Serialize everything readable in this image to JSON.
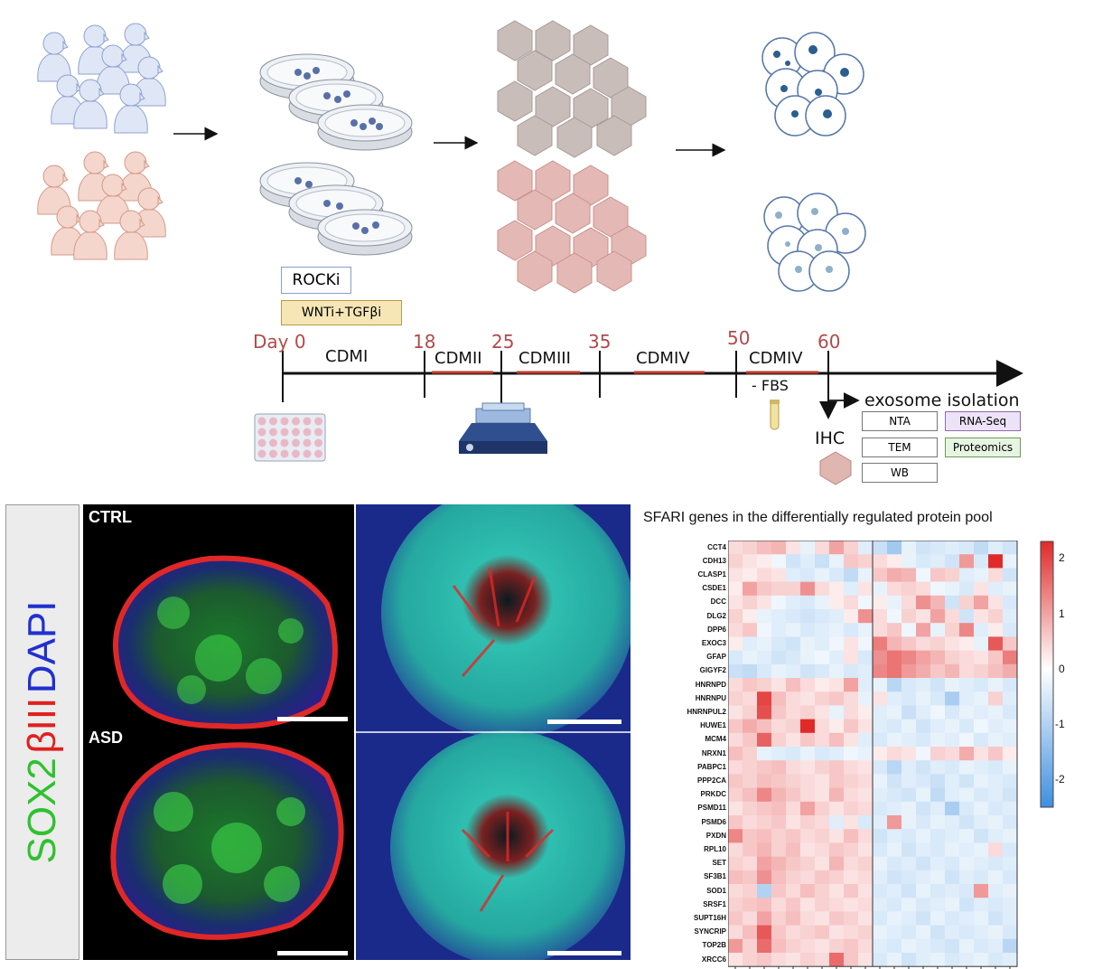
{
  "timeline": {
    "days": [
      "Day 0",
      "18",
      "25",
      "35",
      "50",
      "60"
    ],
    "stages": [
      "CDMI",
      "CDMII",
      "CDMIII",
      "CDMIV",
      "CDMIV"
    ],
    "fbs_label": "- FBS",
    "treatments": [
      "ROCKi",
      "WNTi+TGFβi"
    ],
    "exosome_label": "exosome isolation",
    "ihc_label": "IHC",
    "analyses": [
      "NTA",
      "RNA-Seq",
      "TEM",
      "Proteomics",
      "WB"
    ]
  },
  "microscopy": {
    "stain_sox2": "SOX2",
    "stain_biii": "βIII",
    "stain_dapi": "DAPI",
    "ctrl_label": "CTRL",
    "asd_label": "ASD"
  },
  "chart_data": {
    "type": "heatmap",
    "title": "SFARI genes in the differentially regulated protein pool",
    "genes": [
      "CCT4",
      "CDH13",
      "CLASP1",
      "CSDE1",
      "DCC",
      "DLG2",
      "DPP6",
      "EXOC3",
      "GFAP",
      "GIGYF2",
      "HNRNPD",
      "HNRNPU",
      "HNRNPUL2",
      "HUWE1",
      "MCM4",
      "NRXN1",
      "PABPC1",
      "PPP2CA",
      "PRKDC",
      "PSMD11",
      "PSMD6",
      "PXDN",
      "RPL10",
      "SET",
      "SF3B1",
      "SOD1",
      "SRSF1",
      "SUPT16H",
      "SYNCRIP",
      "TOP2B",
      "XRCC6"
    ],
    "colorbar_ticks": [
      2,
      1,
      0,
      -1,
      -2
    ],
    "color_range": [
      -2.5,
      2.3
    ],
    "colors": {
      "low": "#3d8fe0",
      "mid": "#ffffff",
      "high": "#e02a2a"
    },
    "values": [
      [
        0.4,
        0.5,
        0.7,
        0.8,
        0.3,
        -0.3,
        0.4,
        1.0,
        0.5,
        -0.4,
        -0.7,
        -1.2,
        -0.3,
        -0.6,
        -0.5,
        -0.4,
        -0.5,
        -0.8,
        -0.4,
        -0.6
      ],
      [
        0.5,
        0.3,
        0.2,
        -0.2,
        -0.6,
        -0.4,
        -0.7,
        -0.3,
        0.6,
        0.5,
        0.4,
        0.2,
        -0.3,
        -0.5,
        -0.4,
        -0.6,
        1.1,
        -0.5,
        2.4,
        -0.3
      ],
      [
        0.3,
        0.2,
        0.4,
        0.3,
        -0.4,
        -0.5,
        -0.3,
        -0.5,
        -0.8,
        -0.3,
        0.6,
        0.9,
        0.8,
        -0.2,
        0.6,
        0.5,
        -0.4,
        -0.3,
        0.4,
        -0.6
      ],
      [
        0.2,
        1.0,
        0.6,
        0.5,
        0.5,
        1.2,
        0.4,
        0.2,
        -0.4,
        0.3,
        -0.3,
        0.4,
        0.5,
        0.4,
        -0.2,
        -0.3,
        -0.5,
        0.3,
        -0.4,
        -0.3
      ],
      [
        0.3,
        0.5,
        0.3,
        -0.2,
        -0.4,
        -0.5,
        -0.3,
        0.2,
        0.4,
        -0.2,
        0.2,
        -0.3,
        0.4,
        1.2,
        0.8,
        -0.6,
        0.5,
        1.0,
        0.3,
        -0.5
      ],
      [
        0.5,
        0.2,
        -0.3,
        -0.4,
        -0.5,
        -0.6,
        -0.5,
        -0.4,
        0.2,
        1.2,
        0.4,
        -0.2,
        0.5,
        0.3,
        1.0,
        0.4,
        -0.6,
        0.3,
        0.5,
        -0.4
      ],
      [
        0.4,
        0.6,
        -0.2,
        -0.4,
        -0.3,
        -0.5,
        -0.4,
        -0.3,
        -0.5,
        -0.3,
        0.4,
        0.6,
        -0.2,
        1.0,
        -0.3,
        0.5,
        1.3,
        -0.4,
        0.2,
        -0.5
      ],
      [
        0.2,
        -0.4,
        -0.3,
        -0.5,
        -0.6,
        -0.3,
        -0.4,
        -0.2,
        0.3,
        -0.2,
        1.4,
        0.8,
        0.6,
        0.4,
        0.5,
        0.3,
        0.2,
        -0.3,
        1.8,
        0.6
      ],
      [
        -0.5,
        -0.3,
        -0.4,
        -0.6,
        -0.5,
        -0.3,
        -0.2,
        -0.4,
        0.3,
        -0.5,
        1.2,
        1.5,
        1.3,
        1.0,
        0.8,
        0.5,
        0.4,
        0.3,
        0.6,
        1.4
      ],
      [
        -0.7,
        -0.8,
        -0.5,
        -0.3,
        -0.4,
        -0.6,
        -0.5,
        -0.3,
        -0.5,
        -0.4,
        1.3,
        1.5,
        1.1,
        0.9,
        0.6,
        0.8,
        0.4,
        0.5,
        0.7,
        0.9
      ],
      [
        0.4,
        0.6,
        0.5,
        0.3,
        0.7,
        0.4,
        0.2,
        0.3,
        1.0,
        -0.4,
        -0.3,
        -0.9,
        -0.5,
        -0.4,
        -0.6,
        -0.3,
        -0.4,
        -0.5,
        -0.3,
        -0.5
      ],
      [
        0.5,
        0.4,
        2.0,
        0.7,
        0.4,
        0.3,
        0.5,
        0.6,
        0.4,
        -0.3,
        0.3,
        -0.4,
        -0.5,
        -0.3,
        -0.5,
        -1.1,
        -0.4,
        -0.3,
        0.5,
        -0.4
      ],
      [
        0.3,
        0.5,
        1.9,
        0.6,
        0.4,
        0.5,
        0.3,
        -0.3,
        0.4,
        0.2,
        -0.4,
        -0.3,
        -0.7,
        -0.4,
        -0.2,
        -0.5,
        -0.3,
        -0.4,
        -0.3,
        -0.5
      ],
      [
        0.6,
        0.9,
        0.7,
        0.4,
        0.5,
        2.3,
        0.4,
        0.2,
        0.6,
        0.3,
        -0.4,
        -0.5,
        -0.3,
        -0.6,
        -0.4,
        -0.3,
        -0.5,
        -0.2,
        -0.4,
        -0.3
      ],
      [
        0.4,
        0.6,
        1.7,
        0.5,
        0.3,
        0.6,
        0.4,
        0.7,
        0.3,
        -0.4,
        -0.5,
        -0.3,
        -0.4,
        -0.5,
        -0.3,
        -0.4,
        -0.2,
        -0.5,
        -0.3,
        -0.4
      ],
      [
        0.7,
        0.5,
        -0.3,
        -0.4,
        -0.5,
        -0.3,
        -0.5,
        -0.4,
        -0.2,
        -0.3,
        0.2,
        0.4,
        0.3,
        -0.2,
        0.5,
        0.4,
        0.9,
        0.3,
        0.6,
        0.2
      ],
      [
        0.4,
        0.5,
        0.6,
        0.7,
        0.4,
        0.3,
        0.5,
        0.6,
        0.4,
        0.3,
        -0.5,
        -0.9,
        -0.4,
        -0.6,
        -0.4,
        -0.5,
        -0.3,
        -0.4,
        -0.5,
        -0.3
      ],
      [
        0.6,
        0.5,
        0.7,
        0.6,
        0.5,
        0.4,
        0.3,
        0.6,
        0.5,
        0.4,
        -0.3,
        -0.6,
        -0.4,
        -0.5,
        -0.7,
        -0.4,
        -0.6,
        -0.3,
        -0.4,
        -0.5
      ],
      [
        0.5,
        0.7,
        1.3,
        0.8,
        0.6,
        0.4,
        0.3,
        0.8,
        0.4,
        0.3,
        -0.4,
        -0.5,
        -0.6,
        -0.3,
        -0.8,
        -0.4,
        -0.3,
        -0.5,
        -0.4,
        -0.6
      ],
      [
        0.3,
        0.5,
        0.6,
        0.7,
        0.4,
        1.0,
        0.5,
        0.3,
        0.5,
        0.4,
        -0.5,
        -0.4,
        -0.3,
        -0.6,
        -0.4,
        -1.1,
        -0.5,
        -0.3,
        -0.5,
        -0.4
      ],
      [
        0.6,
        0.4,
        0.5,
        0.6,
        0.3,
        0.5,
        0.4,
        -0.4,
        0.3,
        -0.5,
        -0.4,
        1.1,
        -0.3,
        -0.5,
        -0.3,
        -0.4,
        -0.6,
        -0.4,
        -0.3,
        -0.5
      ],
      [
        1.3,
        0.6,
        0.7,
        0.5,
        0.6,
        0.4,
        0.5,
        0.3,
        0.7,
        0.4,
        -0.6,
        -0.4,
        -0.5,
        -0.3,
        -0.5,
        -0.4,
        -0.3,
        -0.6,
        -0.4,
        -0.3
      ],
      [
        0.4,
        0.6,
        0.8,
        0.5,
        0.7,
        0.3,
        0.4,
        0.6,
        0.5,
        0.3,
        -0.5,
        -0.3,
        -0.6,
        -0.4,
        -0.5,
        -0.3,
        -0.4,
        -0.3,
        0.4,
        -0.5
      ],
      [
        0.5,
        0.4,
        1.0,
        0.8,
        0.6,
        0.5,
        0.3,
        0.8,
        0.4,
        0.5,
        -0.3,
        -0.5,
        -0.4,
        -0.6,
        -0.4,
        -0.5,
        -0.3,
        -0.4,
        -0.5,
        -0.4
      ],
      [
        0.7,
        0.6,
        1.2,
        0.7,
        0.5,
        0.4,
        0.6,
        0.5,
        0.3,
        0.4,
        -0.4,
        -0.6,
        -0.5,
        -0.4,
        -0.3,
        -0.6,
        -0.4,
        -0.5,
        -0.3,
        -0.5
      ],
      [
        0.4,
        0.5,
        -1.0,
        0.6,
        0.4,
        0.7,
        0.5,
        0.3,
        0.6,
        0.3,
        -0.5,
        -0.4,
        -0.6,
        -0.3,
        -0.5,
        -0.4,
        -0.5,
        1.1,
        -0.4,
        -0.3
      ],
      [
        0.5,
        0.6,
        0.7,
        0.4,
        0.6,
        0.3,
        0.5,
        0.4,
        0.3,
        0.4,
        -0.4,
        -0.5,
        -0.3,
        -0.5,
        -0.4,
        -0.3,
        -0.6,
        -0.4,
        -0.5,
        -0.4
      ],
      [
        0.6,
        0.4,
        1.0,
        0.5,
        0.7,
        0.4,
        0.3,
        0.6,
        0.5,
        0.3,
        -0.5,
        -0.3,
        -0.4,
        -0.6,
        -0.3,
        -0.5,
        -0.4,
        -0.3,
        -0.6,
        -0.4
      ],
      [
        0.4,
        0.7,
        1.8,
        0.6,
        0.4,
        0.5,
        0.6,
        0.3,
        0.4,
        0.5,
        -0.3,
        -0.4,
        -0.5,
        -0.3,
        -0.6,
        -0.4,
        -0.5,
        -0.4,
        -0.3,
        -0.5
      ],
      [
        1.1,
        0.5,
        1.6,
        0.7,
        0.5,
        0.4,
        0.3,
        0.5,
        0.6,
        0.4,
        -0.4,
        -0.5,
        -0.3,
        -0.4,
        -0.5,
        -0.6,
        -0.3,
        -0.5,
        -0.4,
        -0.9
      ],
      [
        0.3,
        0.5,
        0.6,
        0.4,
        0.3,
        0.5,
        0.4,
        1.6,
        0.6,
        0.3,
        -0.5,
        -0.3,
        -0.6,
        -0.4,
        -0.3,
        -0.5,
        -0.4,
        -0.3,
        -0.5,
        -0.4
      ]
    ]
  }
}
